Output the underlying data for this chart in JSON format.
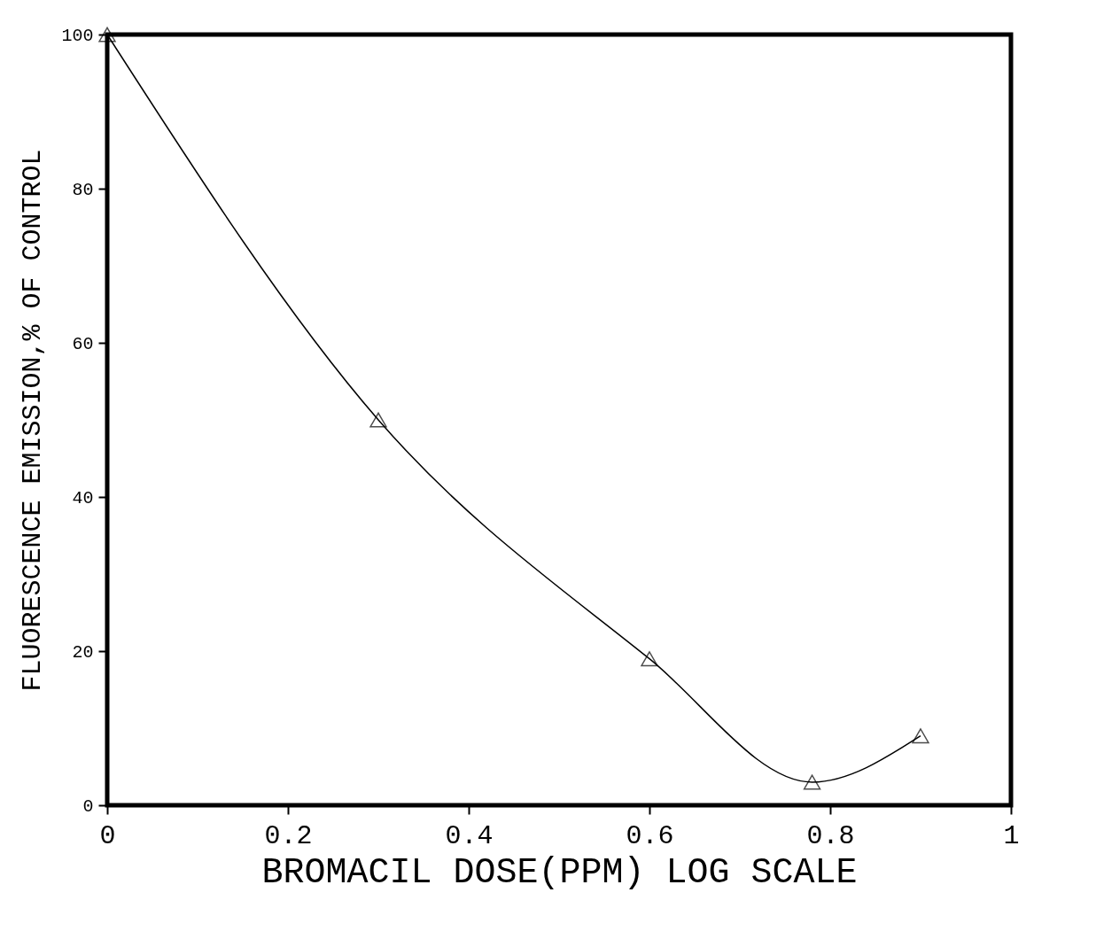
{
  "chart_data": {
    "type": "line",
    "xlabel": "BROMACIL DOSE(PPM) LOG SCALE",
    "ylabel": "FLUORESCENCE EMISSION,% OF CONTROL",
    "x": [
      0,
      0.3,
      0.6,
      0.78,
      0.9
    ],
    "series": [
      {
        "color": "#000000",
        "values": [
          100,
          50,
          19,
          3,
          9
        ]
      }
    ],
    "xlim": [
      0,
      1
    ],
    "xticks": [
      0,
      0.2,
      0.4,
      0.6,
      0.8,
      1
    ],
    "ylim": [
      0,
      100
    ],
    "yticks": [
      0,
      20,
      40,
      60,
      80,
      100
    ],
    "grid": false,
    "marker": "triangle",
    "line_style": "solid"
  }
}
